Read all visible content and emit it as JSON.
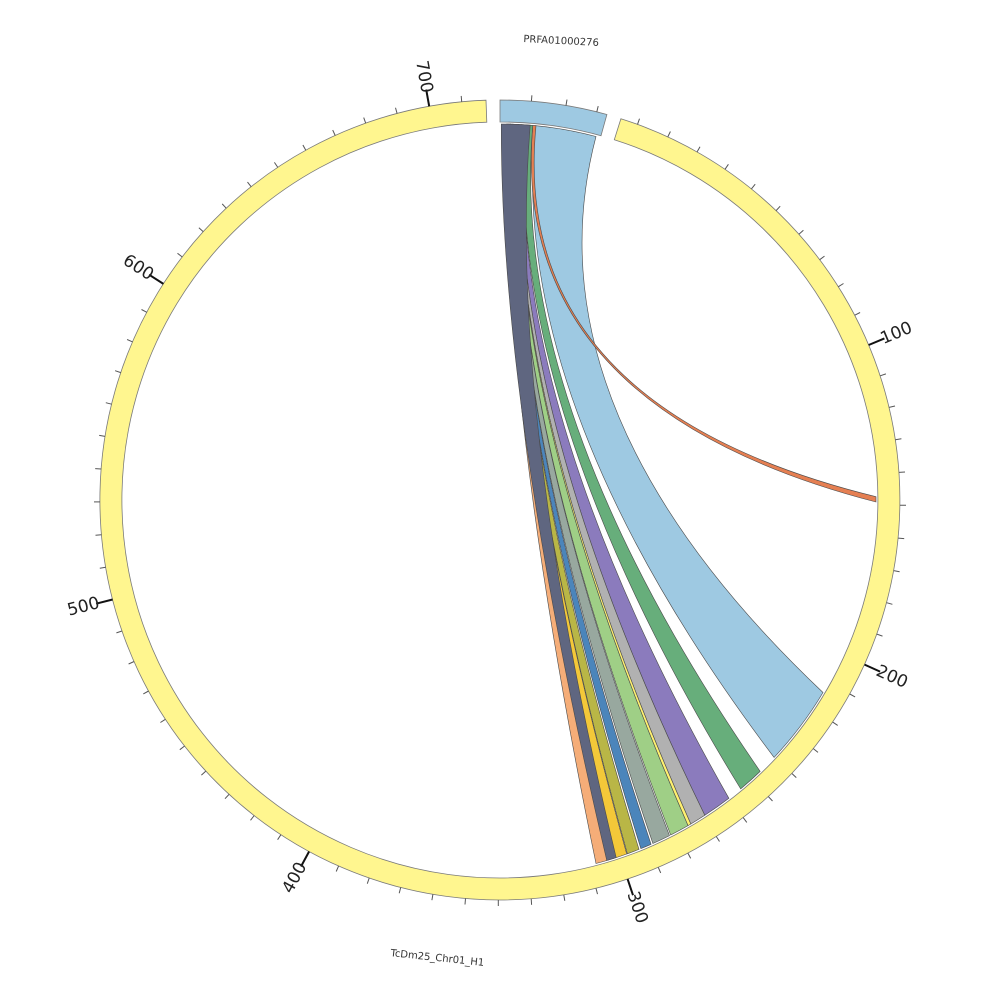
{
  "chart_data": {
    "type": "chord",
    "sequences": [
      {
        "name": "PRFA01000276",
        "color": "#9ec9e2"
      },
      {
        "name": "TcDm25_Chr01_H1",
        "color": "#fff68f",
        "tick_labels": [
          "100",
          "200",
          "300",
          "400",
          "500",
          "600",
          "700"
        ]
      }
    ],
    "links": [
      {
        "color": "#9ec9e2"
      },
      {
        "color": "#e57f52"
      },
      {
        "color": "#67ae7b"
      },
      {
        "color": "#8b7bbd"
      },
      {
        "color": "#b1b1b1"
      },
      {
        "color": "#fff170"
      },
      {
        "color": "#9fcf86"
      },
      {
        "color": "#98a89f"
      },
      {
        "color": "#4b85bb"
      },
      {
        "color": "#b9b646"
      },
      {
        "color": "#f3c839"
      },
      {
        "color": "#f5ad78"
      },
      {
        "color": "#5f6680"
      }
    ]
  }
}
